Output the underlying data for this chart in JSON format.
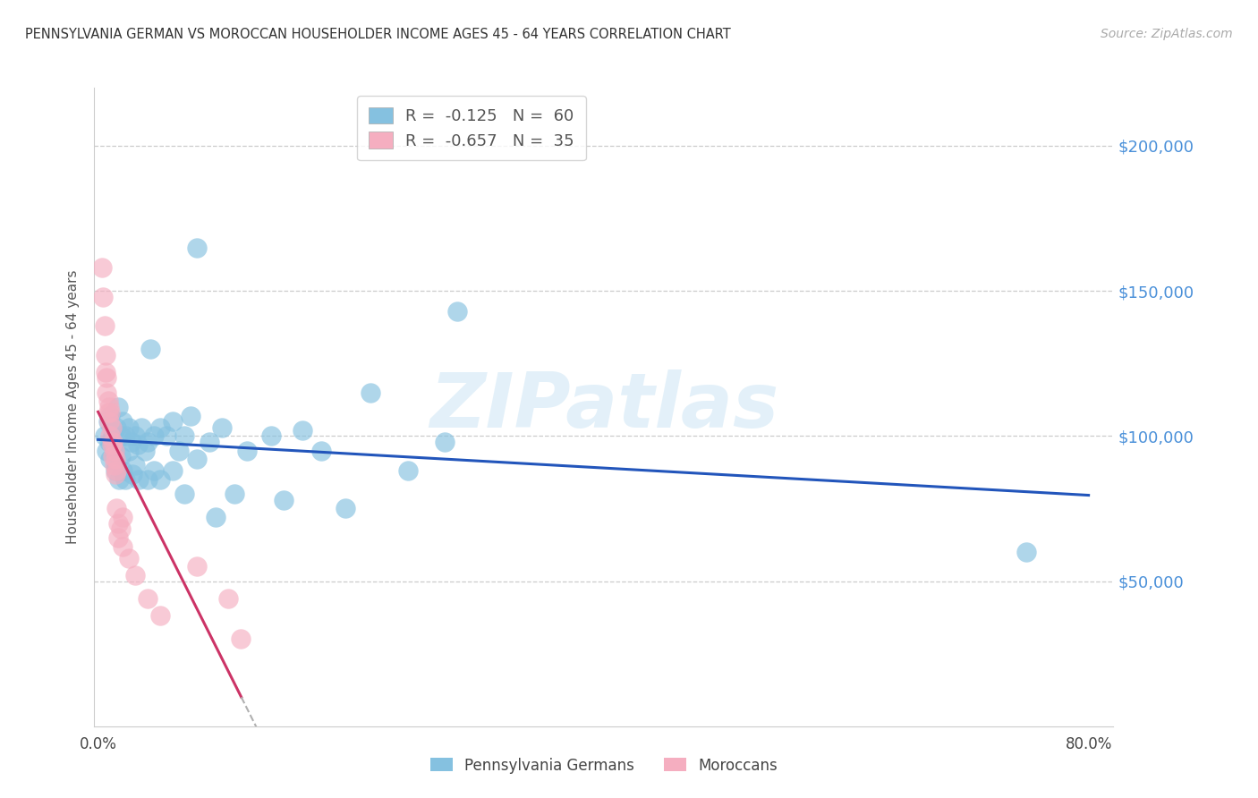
{
  "title": "PENNSYLVANIA GERMAN VS MOROCCAN HOUSEHOLDER INCOME AGES 45 - 64 YEARS CORRELATION CHART",
  "source": "Source: ZipAtlas.com",
  "ylabel": "Householder Income Ages 45 - 64 years",
  "ytick_values": [
    50000,
    100000,
    150000,
    200000
  ],
  "ytick_labels": [
    "$50,000",
    "$100,000",
    "$150,000",
    "$200,000"
  ],
  "ylim": [
    0,
    220000
  ],
  "xlim": [
    -0.003,
    0.82
  ],
  "watermark": "ZIPatlas",
  "legend_blue_r": "-0.125",
  "legend_blue_n": "60",
  "legend_pink_r": "-0.657",
  "legend_pink_n": "35",
  "blue_scatter_color": "#85c1e0",
  "pink_scatter_color": "#f5aec0",
  "trend_blue_color": "#2255bb",
  "trend_pink_color": "#cc3366",
  "title_fontsize": 10.5,
  "source_fontsize": 10,
  "blue_scatter": [
    [
      0.005,
      100000
    ],
    [
      0.007,
      95000
    ],
    [
      0.008,
      105000
    ],
    [
      0.009,
      98000
    ],
    [
      0.01,
      92000
    ],
    [
      0.01,
      107000
    ],
    [
      0.012,
      100000
    ],
    [
      0.013,
      95000
    ],
    [
      0.014,
      88000
    ],
    [
      0.015,
      103000
    ],
    [
      0.015,
      90000
    ],
    [
      0.016,
      110000
    ],
    [
      0.017,
      85000
    ],
    [
      0.018,
      100000
    ],
    [
      0.018,
      93000
    ],
    [
      0.02,
      105000
    ],
    [
      0.02,
      88000
    ],
    [
      0.022,
      100000
    ],
    [
      0.022,
      85000
    ],
    [
      0.025,
      103000
    ],
    [
      0.025,
      95000
    ],
    [
      0.027,
      98000
    ],
    [
      0.028,
      87000
    ],
    [
      0.03,
      100000
    ],
    [
      0.03,
      90000
    ],
    [
      0.032,
      97000
    ],
    [
      0.033,
      85000
    ],
    [
      0.035,
      103000
    ],
    [
      0.038,
      95000
    ],
    [
      0.04,
      98000
    ],
    [
      0.04,
      85000
    ],
    [
      0.042,
      130000
    ],
    [
      0.045,
      100000
    ],
    [
      0.045,
      88000
    ],
    [
      0.05,
      103000
    ],
    [
      0.05,
      85000
    ],
    [
      0.055,
      100000
    ],
    [
      0.06,
      105000
    ],
    [
      0.06,
      88000
    ],
    [
      0.065,
      95000
    ],
    [
      0.07,
      100000
    ],
    [
      0.07,
      80000
    ],
    [
      0.075,
      107000
    ],
    [
      0.08,
      92000
    ],
    [
      0.08,
      165000
    ],
    [
      0.09,
      98000
    ],
    [
      0.095,
      72000
    ],
    [
      0.1,
      103000
    ],
    [
      0.11,
      80000
    ],
    [
      0.12,
      95000
    ],
    [
      0.14,
      100000
    ],
    [
      0.15,
      78000
    ],
    [
      0.165,
      102000
    ],
    [
      0.18,
      95000
    ],
    [
      0.2,
      75000
    ],
    [
      0.22,
      115000
    ],
    [
      0.25,
      88000
    ],
    [
      0.28,
      98000
    ],
    [
      0.29,
      143000
    ],
    [
      0.75,
      60000
    ]
  ],
  "pink_scatter": [
    [
      0.003,
      158000
    ],
    [
      0.004,
      148000
    ],
    [
      0.005,
      138000
    ],
    [
      0.006,
      128000
    ],
    [
      0.006,
      122000
    ],
    [
      0.007,
      120000
    ],
    [
      0.007,
      115000
    ],
    [
      0.008,
      112000
    ],
    [
      0.008,
      108000
    ],
    [
      0.009,
      110000
    ],
    [
      0.009,
      105000
    ],
    [
      0.01,
      108000
    ],
    [
      0.01,
      100000
    ],
    [
      0.011,
      103000
    ],
    [
      0.011,
      97000
    ],
    [
      0.012,
      98000
    ],
    [
      0.012,
      93000
    ],
    [
      0.013,
      95000
    ],
    [
      0.013,
      90000
    ],
    [
      0.014,
      92000
    ],
    [
      0.014,
      87000
    ],
    [
      0.015,
      88000
    ],
    [
      0.015,
      75000
    ],
    [
      0.016,
      70000
    ],
    [
      0.016,
      65000
    ],
    [
      0.018,
      68000
    ],
    [
      0.02,
      62000
    ],
    [
      0.02,
      72000
    ],
    [
      0.025,
      58000
    ],
    [
      0.03,
      52000
    ],
    [
      0.04,
      44000
    ],
    [
      0.05,
      38000
    ],
    [
      0.08,
      55000
    ],
    [
      0.105,
      44000
    ],
    [
      0.115,
      30000
    ]
  ]
}
